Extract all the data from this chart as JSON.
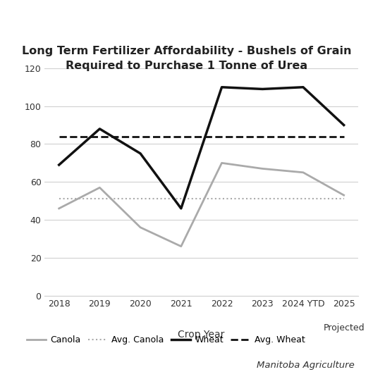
{
  "title": "Long Term Fertilizer Affordability - Bushels of Grain\nRequired to Purchase 1 Tonne of Urea",
  "xlabel": "Crop Year",
  "categories": [
    "2018",
    "2019",
    "2020",
    "2021",
    "2022",
    "2023",
    "2024 YTD",
    "2025"
  ],
  "last_label_extra": "Projected",
  "canola": [
    46,
    57,
    36,
    26,
    70,
    67,
    65,
    53
  ],
  "avg_canola": 51,
  "wheat": [
    69,
    88,
    75,
    46,
    110,
    109,
    110,
    90
  ],
  "avg_wheat": 84,
  "canola_color": "#aaaaaa",
  "wheat_color": "#111111",
  "avg_canola_color": "#aaaaaa",
  "avg_wheat_color": "#111111",
  "ylim": [
    0,
    120
  ],
  "yticks": [
    0,
    20,
    40,
    60,
    80,
    100,
    120
  ],
  "legend_labels": [
    "Canola",
    "Avg. Canola",
    "Wheat",
    "Avg. Wheat"
  ],
  "attribution": "Manitoba Agriculture",
  "background_color": "#ffffff",
  "grid_color": "#d0d0d0"
}
